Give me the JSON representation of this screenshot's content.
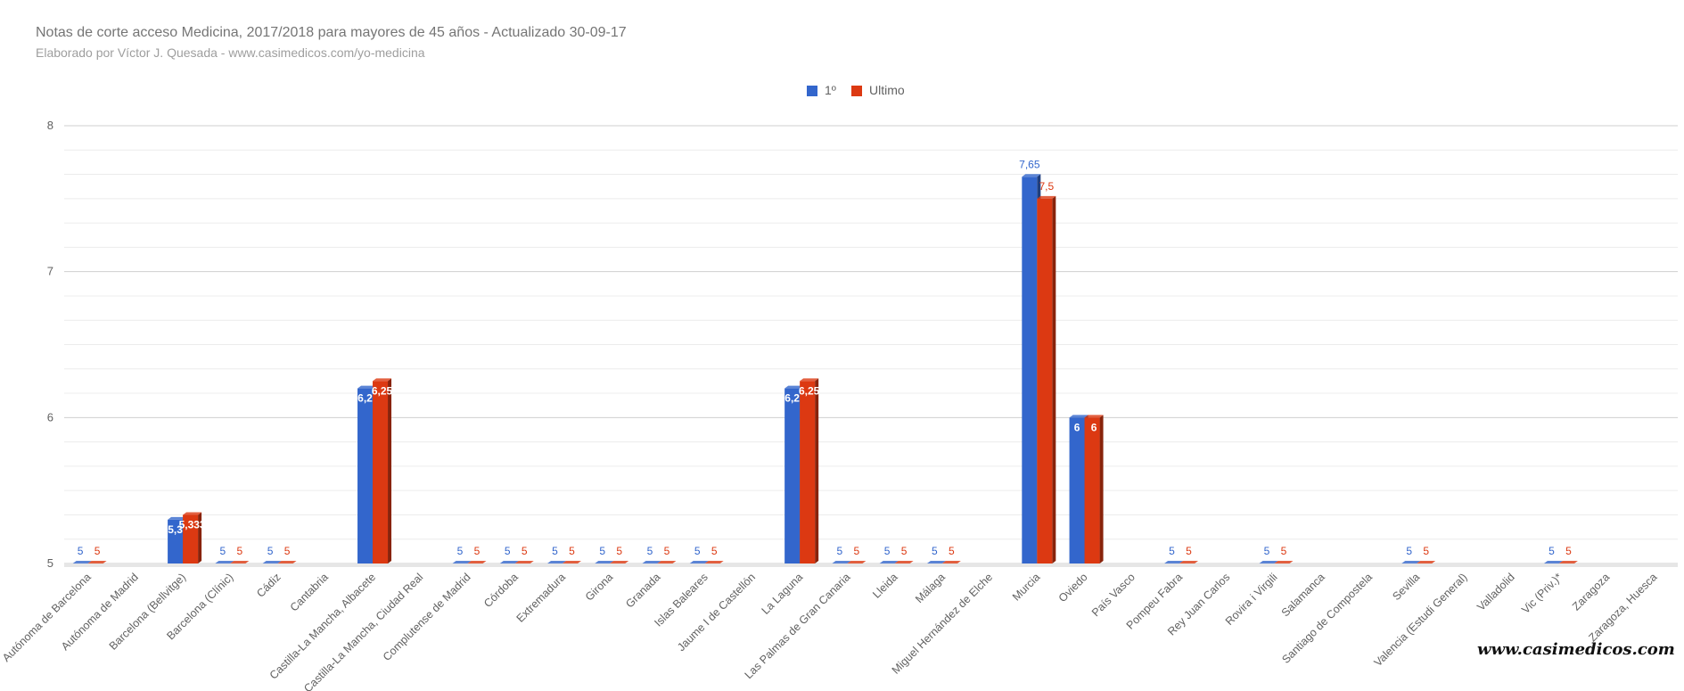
{
  "header": {
    "title": "Notas de corte acceso Medicina, 2017/2018 para mayores de 45 años - Actualizado 30-09-17",
    "subtitle": "Elaborado por Víctor J. Quesada - www.casimedicos.com/yo-medicina"
  },
  "watermark": "www.casimedicos.com",
  "colors": {
    "series1": "#3366cc",
    "series2": "#dc3912",
    "grid": "#e0e0e0",
    "text": "#616161"
  },
  "chart_data": {
    "type": "bar",
    "title": "Notas de corte acceso Medicina, 2017/2018 para mayores de 45 años - Actualizado 30-09-17",
    "subtitle": "Elaborado por Víctor J. Quesada - www.casimedicos.com/yo-medicina",
    "xlabel": "",
    "ylabel": "",
    "ylim": [
      5,
      8
    ],
    "yticks": [
      5,
      6,
      7,
      8
    ],
    "grid": true,
    "legend_position": "top-center",
    "categories": [
      "Autónoma de Barcelona",
      "Autónoma de Madrid",
      "Barcelona (Bellvitge)",
      "Barcelona (Clínic)",
      "Cádiz",
      "Cantabria",
      "Castilla-La Mancha, Albacete",
      "Castilla-La Mancha, Ciudad Real",
      "Complutense de Madrid",
      "Córdoba",
      "Extremadura",
      "Girona",
      "Granada",
      "Islas Baleares",
      "Jaume I de Castellón",
      "La Laguna",
      "Las Palmas de Gran Canaria",
      "Lleida",
      "Málaga",
      "Miguel Hernández de Elche",
      "Murcia",
      "Oviedo",
      "País Vasco",
      "Pompeu Fabra",
      "Rey Juan Carlos",
      "Rovira i Virgili",
      "Salamanca",
      "Santiago de Compostela",
      "Sevilla",
      "Valencia (Estudi General)",
      "Valladolid",
      "Vic (Priv.)*",
      "Zaragoza",
      "Zaragoza, Huesca"
    ],
    "series": [
      {
        "name": "1º",
        "values": [
          5,
          null,
          5.3,
          5,
          5,
          null,
          6.2,
          null,
          5,
          5,
          5,
          5,
          5,
          5,
          null,
          6.2,
          5,
          5,
          5,
          null,
          7.65,
          6,
          null,
          5,
          null,
          5,
          null,
          null,
          5,
          null,
          null,
          5,
          null,
          null
        ],
        "labels": [
          "5",
          "",
          "5,3",
          "5",
          "5",
          "",
          "6,2",
          "",
          "5",
          "5",
          "5",
          "5",
          "5",
          "5",
          "",
          "6,2",
          "5",
          "5",
          "5",
          "",
          "7,65",
          "6",
          "",
          "5",
          "",
          "5",
          "",
          "",
          "5",
          "",
          "",
          "5",
          "",
          ""
        ]
      },
      {
        "name": "Ultimo",
        "values": [
          5,
          null,
          5.333,
          5,
          5,
          null,
          6.25,
          null,
          5,
          5,
          5,
          5,
          5,
          5,
          null,
          6.25,
          5,
          5,
          5,
          null,
          7.5,
          6,
          null,
          5,
          null,
          5,
          null,
          null,
          5,
          null,
          null,
          5,
          null,
          null
        ],
        "labels": [
          "5",
          "",
          "5,333",
          "5",
          "5",
          "",
          "6,25",
          "",
          "5",
          "5",
          "5",
          "5",
          "5",
          "5",
          "",
          "6,25",
          "5",
          "5",
          "5",
          "",
          "7,5",
          "6",
          "",
          "5",
          "",
          "5",
          "",
          "",
          "5",
          "",
          "",
          "5",
          "",
          ""
        ]
      }
    ]
  }
}
